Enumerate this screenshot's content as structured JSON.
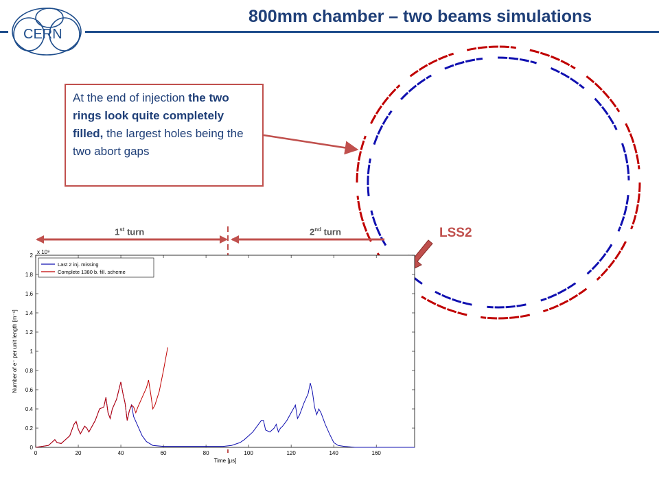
{
  "header": {
    "title": "800mm chamber – two beams simulations",
    "logo_text": "CERN"
  },
  "callout": {
    "segments": [
      {
        "text": "At the end of injection ",
        "bold": false
      },
      {
        "text": "the two rings look quite completely filled,",
        "bold": true
      },
      {
        "text": " the largest holes being the two abort gaps",
        "bold": false
      }
    ]
  },
  "annotations": {
    "turn1_main": "1",
    "turn1_sup": "st",
    "turn1_rest": " turn",
    "turn2_main": "2",
    "turn2_sup": "nd",
    "turn2_rest": " turn",
    "lss2": "LSS2"
  },
  "colors": {
    "title": "#1f3f78",
    "accent": "#c0504d",
    "series_blue": "#1010b0",
    "series_red": "#c00000"
  },
  "rings": {
    "outer_color": "#c00000",
    "inner_color": "#1010b0"
  },
  "chart_data": {
    "type": "line",
    "xlabel": "Time [μs]",
    "ylabel": "Number of e⁻ per unit length [m⁻¹]",
    "y_multiplier": "x 10⁹",
    "xlim": [
      0,
      178
    ],
    "ylim": [
      0,
      2
    ],
    "xticks": [
      0,
      20,
      40,
      60,
      80,
      100,
      120,
      140,
      160
    ],
    "yticks": [
      0,
      0.2,
      0.4,
      0.6,
      0.8,
      1,
      1.2,
      1.4,
      1.6,
      1.8,
      2
    ],
    "legend_position": "top-left",
    "series": [
      {
        "name": "Last 2 inj. missing",
        "color": "#1010b0",
        "points": [
          [
            0,
            0.0
          ],
          [
            6,
            0.02
          ],
          [
            8,
            0.06
          ],
          [
            9,
            0.08
          ],
          [
            10,
            0.05
          ],
          [
            12,
            0.04
          ],
          [
            14,
            0.08
          ],
          [
            16,
            0.12
          ],
          [
            18,
            0.24
          ],
          [
            19,
            0.27
          ],
          [
            20,
            0.19
          ],
          [
            21,
            0.14
          ],
          [
            22,
            0.18
          ],
          [
            23,
            0.22
          ],
          [
            24,
            0.2
          ],
          [
            25,
            0.16
          ],
          [
            26,
            0.2
          ],
          [
            28,
            0.28
          ],
          [
            30,
            0.4
          ],
          [
            32,
            0.42
          ],
          [
            33,
            0.52
          ],
          [
            34,
            0.36
          ],
          [
            35,
            0.3
          ],
          [
            36,
            0.4
          ],
          [
            38,
            0.5
          ],
          [
            40,
            0.68
          ],
          [
            41,
            0.56
          ],
          [
            42,
            0.46
          ],
          [
            43,
            0.28
          ],
          [
            44,
            0.38
          ],
          [
            45,
            0.44
          ],
          [
            46,
            0.32
          ],
          [
            48,
            0.22
          ],
          [
            50,
            0.12
          ],
          [
            52,
            0.06
          ],
          [
            55,
            0.02
          ],
          [
            60,
            0.01
          ],
          [
            70,
            0.01
          ],
          [
            80,
            0.01
          ],
          [
            88,
            0.01
          ],
          [
            92,
            0.02
          ],
          [
            96,
            0.05
          ],
          [
            98,
            0.08
          ],
          [
            100,
            0.12
          ],
          [
            102,
            0.16
          ],
          [
            104,
            0.22
          ],
          [
            106,
            0.28
          ],
          [
            107,
            0.28
          ],
          [
            108,
            0.18
          ],
          [
            110,
            0.16
          ],
          [
            112,
            0.2
          ],
          [
            113,
            0.24
          ],
          [
            114,
            0.16
          ],
          [
            115,
            0.2
          ],
          [
            116,
            0.22
          ],
          [
            118,
            0.28
          ],
          [
            120,
            0.36
          ],
          [
            122,
            0.44
          ],
          [
            123,
            0.3
          ],
          [
            124,
            0.34
          ],
          [
            126,
            0.46
          ],
          [
            128,
            0.56
          ],
          [
            129,
            0.67
          ],
          [
            130,
            0.58
          ],
          [
            131,
            0.42
          ],
          [
            132,
            0.34
          ],
          [
            133,
            0.4
          ],
          [
            134,
            0.36
          ],
          [
            136,
            0.24
          ],
          [
            138,
            0.14
          ],
          [
            140,
            0.05
          ],
          [
            142,
            0.02
          ],
          [
            145,
            0.01
          ],
          [
            150,
            0.0
          ],
          [
            160,
            0.0
          ],
          [
            178,
            0.0
          ]
        ]
      },
      {
        "name": "Complete 1380 b. fill. scheme",
        "color": "#c00000",
        "points": [
          [
            0,
            0.0
          ],
          [
            6,
            0.02
          ],
          [
            8,
            0.06
          ],
          [
            9,
            0.08
          ],
          [
            10,
            0.05
          ],
          [
            12,
            0.04
          ],
          [
            14,
            0.08
          ],
          [
            16,
            0.12
          ],
          [
            18,
            0.24
          ],
          [
            19,
            0.27
          ],
          [
            20,
            0.19
          ],
          [
            21,
            0.14
          ],
          [
            22,
            0.18
          ],
          [
            23,
            0.22
          ],
          [
            24,
            0.2
          ],
          [
            25,
            0.16
          ],
          [
            26,
            0.2
          ],
          [
            28,
            0.28
          ],
          [
            30,
            0.4
          ],
          [
            32,
            0.42
          ],
          [
            33,
            0.52
          ],
          [
            34,
            0.36
          ],
          [
            35,
            0.3
          ],
          [
            36,
            0.4
          ],
          [
            38,
            0.5
          ],
          [
            40,
            0.68
          ],
          [
            41,
            0.56
          ],
          [
            42,
            0.46
          ],
          [
            43,
            0.28
          ],
          [
            44,
            0.38
          ],
          [
            45,
            0.44
          ],
          [
            46,
            0.42
          ],
          [
            47,
            0.36
          ],
          [
            48,
            0.42
          ],
          [
            50,
            0.52
          ],
          [
            52,
            0.62
          ],
          [
            53,
            0.7
          ],
          [
            54,
            0.56
          ],
          [
            55,
            0.4
          ],
          [
            56,
            0.44
          ],
          [
            58,
            0.58
          ],
          [
            60,
            0.8
          ],
          [
            61,
            0.92
          ],
          [
            62,
            1.04
          ]
        ]
      }
    ]
  }
}
